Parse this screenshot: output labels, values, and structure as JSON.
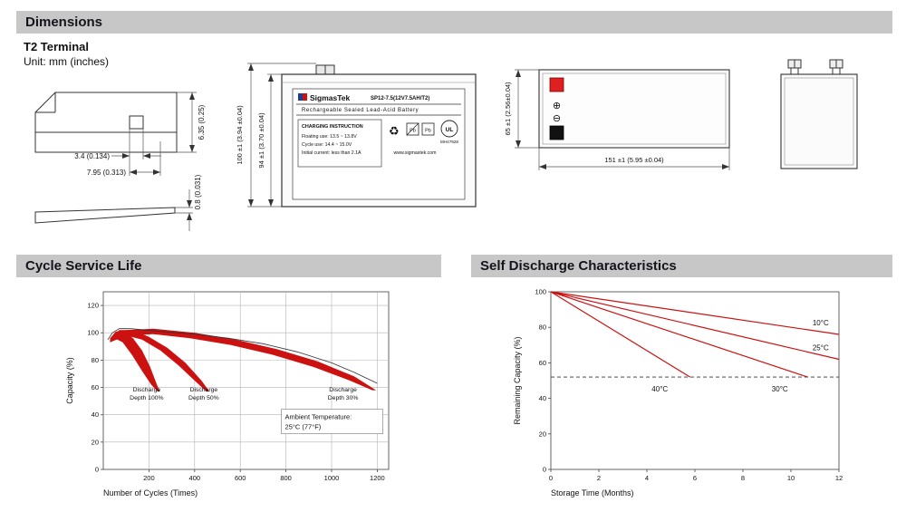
{
  "page": {
    "bg": "#ffffff",
    "accent_red": "#cc1111",
    "header_gray": "#c7c7c7"
  },
  "headers": {
    "dimensions": "Dimensions",
    "cycle_service_life": "Cycle Service Life",
    "self_discharge": "Self Discharge Characteristics"
  },
  "dimensions_section": {
    "terminal_type": "T2 Terminal",
    "unit_note": "Unit: mm (inches)",
    "terminal_drawing": {
      "dim_hole": "3.4 (0.134)",
      "dim_width": "7.95 (0.313)",
      "dim_height": "6.35 (0.25)",
      "dim_thickness": "0.8 (0.031)"
    },
    "front_view": {
      "dim_total_height": "100 ±1 (3.94 ±0.04)",
      "dim_case_height": "94 ±1 (3.70 ±0.04)",
      "label": {
        "brand": "SigmasTek",
        "model": "SP12-7.5(12V7.5AH/T2)",
        "type_line": "Rechargeable Sealed Lead-Acid Battery",
        "charging_title": "CHARGING INSTRUCTION",
        "charging_line1": "Floating use: 13.5 ~ 13.8V",
        "charging_line2": "Cycle use: 14.4 ~ 15.0V",
        "charging_line3": "Initial current: less than 2.1A",
        "recycle_icon": "♻",
        "pb": "Pb",
        "ul_text": "UL",
        "ul_code": "MH47928",
        "website": "www.sigmastek.com"
      }
    },
    "top_view": {
      "dim_depth": "65 ±1 (2.56±0.04)",
      "dim_length": "151 ±1 (5.95 ±0.04)",
      "positive_symbol": "⊕",
      "negative_symbol": "⊖"
    }
  },
  "chart_data": [
    {
      "type": "area",
      "title": "Cycle Service Life",
      "xlabel": "Number of Cycles (Times)",
      "ylabel": "Capacity (%)",
      "xlim": [
        0,
        1250
      ],
      "ylim": [
        0,
        130
      ],
      "xticks": [
        200,
        400,
        600,
        800,
        1000,
        1200
      ],
      "yticks": [
        0,
        20,
        40,
        60,
        80,
        100,
        120
      ],
      "grid": true,
      "legend_position": "none",
      "color": "#cc1111",
      "bands": [
        {
          "name": "Discharge Depth 100%",
          "polygon": [
            [
              30,
              96
            ],
            [
              55,
              101
            ],
            [
              90,
              101
            ],
            [
              130,
              96
            ],
            [
              170,
              87
            ],
            [
              205,
              75
            ],
            [
              235,
              62
            ],
            [
              248,
              57
            ],
            [
              238,
              57
            ],
            [
              210,
              62
            ],
            [
              170,
              72
            ],
            [
              125,
              84
            ],
            [
              85,
              93
            ],
            [
              50,
              96
            ],
            [
              30,
              93
            ]
          ]
        },
        {
          "name": "Discharge Depth 50%",
          "polygon": [
            [
              30,
              96
            ],
            [
              70,
              102
            ],
            [
              130,
              102
            ],
            [
              200,
              97
            ],
            [
              280,
              89
            ],
            [
              360,
              78
            ],
            [
              430,
              65
            ],
            [
              465,
              57
            ],
            [
              452,
              57
            ],
            [
              400,
              65
            ],
            [
              330,
              76
            ],
            [
              250,
              87
            ],
            [
              170,
              95
            ],
            [
              100,
              98
            ],
            [
              55,
              97
            ],
            [
              30,
              93
            ]
          ]
        },
        {
          "name": "Discharge Depth 30%",
          "polygon": [
            [
              30,
              96
            ],
            [
              100,
              102
            ],
            [
              220,
              103
            ],
            [
              400,
              100
            ],
            [
              580,
              95
            ],
            [
              760,
              88
            ],
            [
              940,
              79
            ],
            [
              1100,
              68
            ],
            [
              1195,
              58
            ],
            [
              1178,
              58
            ],
            [
              1080,
              65
            ],
            [
              920,
              75
            ],
            [
              740,
              84
            ],
            [
              560,
              91
            ],
            [
              380,
              96
            ],
            [
              220,
              99
            ],
            [
              100,
              98
            ],
            [
              30,
              93
            ]
          ]
        }
      ],
      "curves": [
        [
          [
            20,
            95
          ],
          [
            40,
            100
          ],
          [
            70,
            103
          ],
          [
            120,
            103
          ],
          [
            250,
            101
          ],
          [
            400,
            99
          ],
          [
            550,
            96
          ],
          [
            700,
            92
          ],
          [
            850,
            86
          ],
          [
            1000,
            78
          ],
          [
            1100,
            71
          ],
          [
            1200,
            63
          ]
        ]
      ],
      "labels": [
        {
          "x": 190,
          "y": 57,
          "lines": [
            "Discharge",
            "Depth 100%"
          ]
        },
        {
          "x": 440,
          "y": 57,
          "lines": [
            "Discharge",
            "Depth 50%"
          ]
        },
        {
          "x": 1050,
          "y": 57,
          "lines": [
            "Discharge",
            "Depth 30%"
          ]
        }
      ],
      "annotation": {
        "x": 780,
        "y": 44,
        "lines": [
          "Ambient Temperature:",
          "25°C (77°F)"
        ]
      }
    },
    {
      "type": "line",
      "title": "Self Discharge Characteristics",
      "xlabel": "Storage Time (Months)",
      "ylabel": "Remaining Capacity (%)",
      "xlim": [
        0,
        12
      ],
      "ylim": [
        0,
        100
      ],
      "xticks": [
        0,
        2,
        4,
        6,
        8,
        10,
        12
      ],
      "yticks": [
        0,
        20,
        40,
        60,
        80,
        100
      ],
      "grid": false,
      "legend_position": "inline",
      "color": "#cc1111",
      "dashed_y": 52,
      "series": [
        {
          "name": "10°C",
          "points": [
            [
              0,
              100
            ],
            [
              12,
              76
            ]
          ],
          "label": [
            10.9,
            81
          ]
        },
        {
          "name": "25°C",
          "points": [
            [
              0,
              100
            ],
            [
              12,
              62
            ]
          ],
          "label": [
            10.9,
            67
          ]
        },
        {
          "name": "30°C",
          "points": [
            [
              0,
              100
            ],
            [
              10.7,
              52
            ]
          ],
          "label": [
            9.2,
            44
          ]
        },
        {
          "name": "40°C",
          "points": [
            [
              0,
              100
            ],
            [
              5.8,
              52
            ]
          ],
          "label": [
            4.2,
            44
          ]
        }
      ]
    }
  ]
}
